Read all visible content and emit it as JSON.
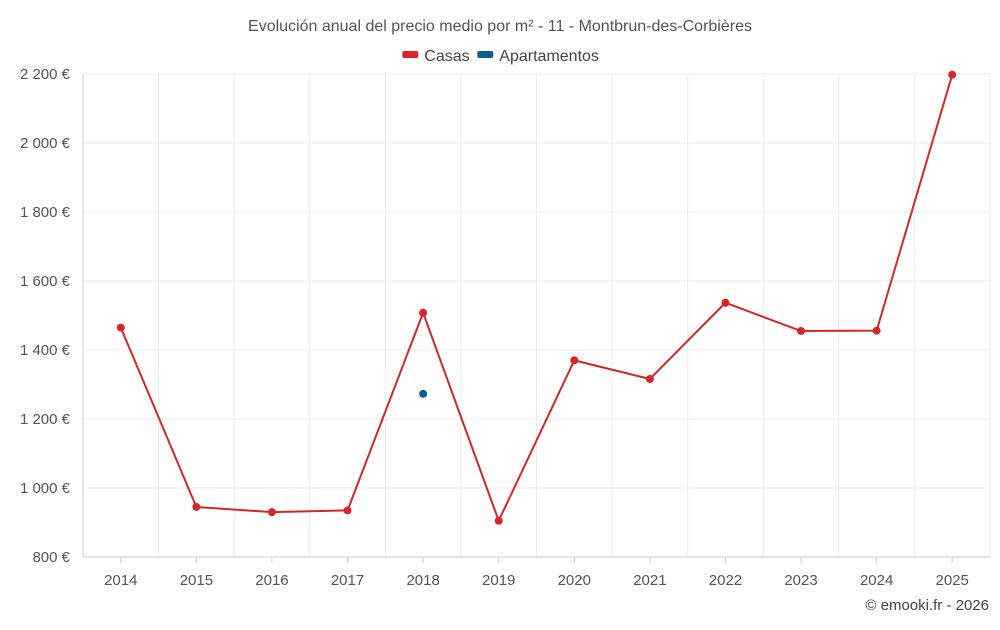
{
  "chart_data": {
    "type": "line",
    "title": "Evolución anual del precio medio por m² - 11 - Montbrun-des-Corbières",
    "categories": [
      "2014",
      "2015",
      "2016",
      "2017",
      "2018",
      "2019",
      "2020",
      "2021",
      "2022",
      "2023",
      "2024",
      "2025"
    ],
    "series": [
      {
        "name": "Casas",
        "color": "#d62728",
        "values": [
          1465,
          945,
          930,
          935,
          1508,
          905,
          1370,
          1316,
          1537,
          1455,
          1456,
          2198
        ]
      },
      {
        "name": "Apartamentos",
        "color": "#0e5d8f",
        "values": [
          null,
          null,
          null,
          null,
          1273,
          null,
          null,
          null,
          null,
          null,
          null,
          null
        ]
      }
    ],
    "ylim": [
      800,
      2200
    ],
    "yticks": [
      800,
      1000,
      1200,
      1400,
      1600,
      1800,
      2000,
      2200
    ],
    "ytick_labels": [
      "800 €",
      "1 000 €",
      "1 200 €",
      "1 400 €",
      "1 600 €",
      "1 800 €",
      "2 000 €",
      "2 200 €"
    ],
    "xlabel": "",
    "ylabel": "",
    "grid": true,
    "legend_position": "top-center"
  },
  "credit": "© emooki.fr - 2026"
}
